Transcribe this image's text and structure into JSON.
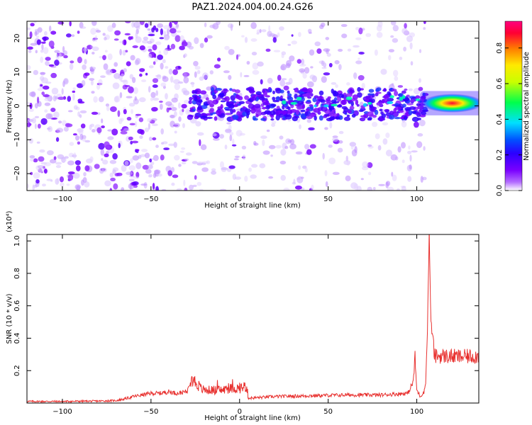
{
  "title": "PAZ1.2024.004.00.24.G26",
  "chart_data": [
    {
      "type": "heatmap",
      "xlabel": "Height of straight line (km)",
      "ylabel": "Frequency (Hz)",
      "xlim": [
        -120,
        135
      ],
      "ylim": [
        -25,
        25
      ],
      "x_ticks": [
        -100,
        -50,
        0,
        50,
        100
      ],
      "y_ticks": [
        -20,
        -10,
        0,
        10,
        20
      ],
      "colorbar": {
        "label": "Normalized spectral amplitude",
        "range": [
          0.0,
          0.95
        ],
        "ticks": [
          0.0,
          0.2,
          0.4,
          0.6,
          0.8
        ],
        "colormap": [
          "#ffffff",
          "#b36bff",
          "#7a00ff",
          "#2b00ff",
          "#0051ff",
          "#00e0ff",
          "#00ff4c",
          "#c8ff00",
          "#ffea00",
          "#ff7a00",
          "#ff0033",
          "#ff0080"
        ]
      },
      "features": [
        {
          "label": "background noise",
          "x_range": [
            -120,
            105
          ],
          "freq_range": [
            -25,
            25
          ],
          "amplitude": 0.05
        },
        {
          "label": "signal band",
          "x_range": [
            -28,
            105
          ],
          "freq_center": 0.5,
          "freq_halfwidth": 4.5,
          "amplitude": 0.15
        },
        {
          "label": "strong tone",
          "x_range": [
            105,
            135
          ],
          "freq_center": 0.8,
          "freq_halfwidth": 1.2,
          "amplitude": 0.9
        }
      ]
    },
    {
      "type": "line",
      "xlabel": "Height of straight line (km)",
      "ylabel": "SNR (10 * v/v)",
      "y_multiplier": "(x10⁴)",
      "xlim": [
        -120,
        135
      ],
      "ylim": [
        0.0,
        1.04
      ],
      "x_ticks": [
        -100,
        -50,
        0,
        50,
        100
      ],
      "y_ticks": [
        0.2,
        0.4,
        0.6,
        0.8,
        1.0
      ],
      "color": "#e8312f",
      "series": [
        {
          "x": [
            -120,
            -100,
            -80,
            -70,
            -65,
            -60,
            -55,
            -50,
            -45,
            -40,
            -35,
            -30,
            -28,
            -26,
            -24,
            -22,
            -20,
            -15,
            -10,
            -5,
            0,
            2,
            4,
            5,
            20,
            40,
            60,
            80,
            95,
            98,
            99,
            100,
            102,
            104,
            105,
            106,
            107,
            108,
            110,
            115,
            125,
            135
          ],
          "y": [
            0.01,
            0.01,
            0.012,
            0.015,
            0.025,
            0.04,
            0.05,
            0.06,
            0.06,
            0.07,
            0.06,
            0.07,
            0.16,
            0.14,
            0.12,
            0.09,
            0.08,
            0.08,
            0.08,
            0.09,
            0.09,
            0.1,
            0.1,
            0.03,
            0.04,
            0.045,
            0.05,
            0.05,
            0.06,
            0.13,
            0.28,
            0.08,
            0.04,
            0.07,
            0.12,
            0.45,
            1.04,
            0.5,
            0.29,
            0.29,
            0.285,
            0.29
          ]
        }
      ]
    }
  ]
}
